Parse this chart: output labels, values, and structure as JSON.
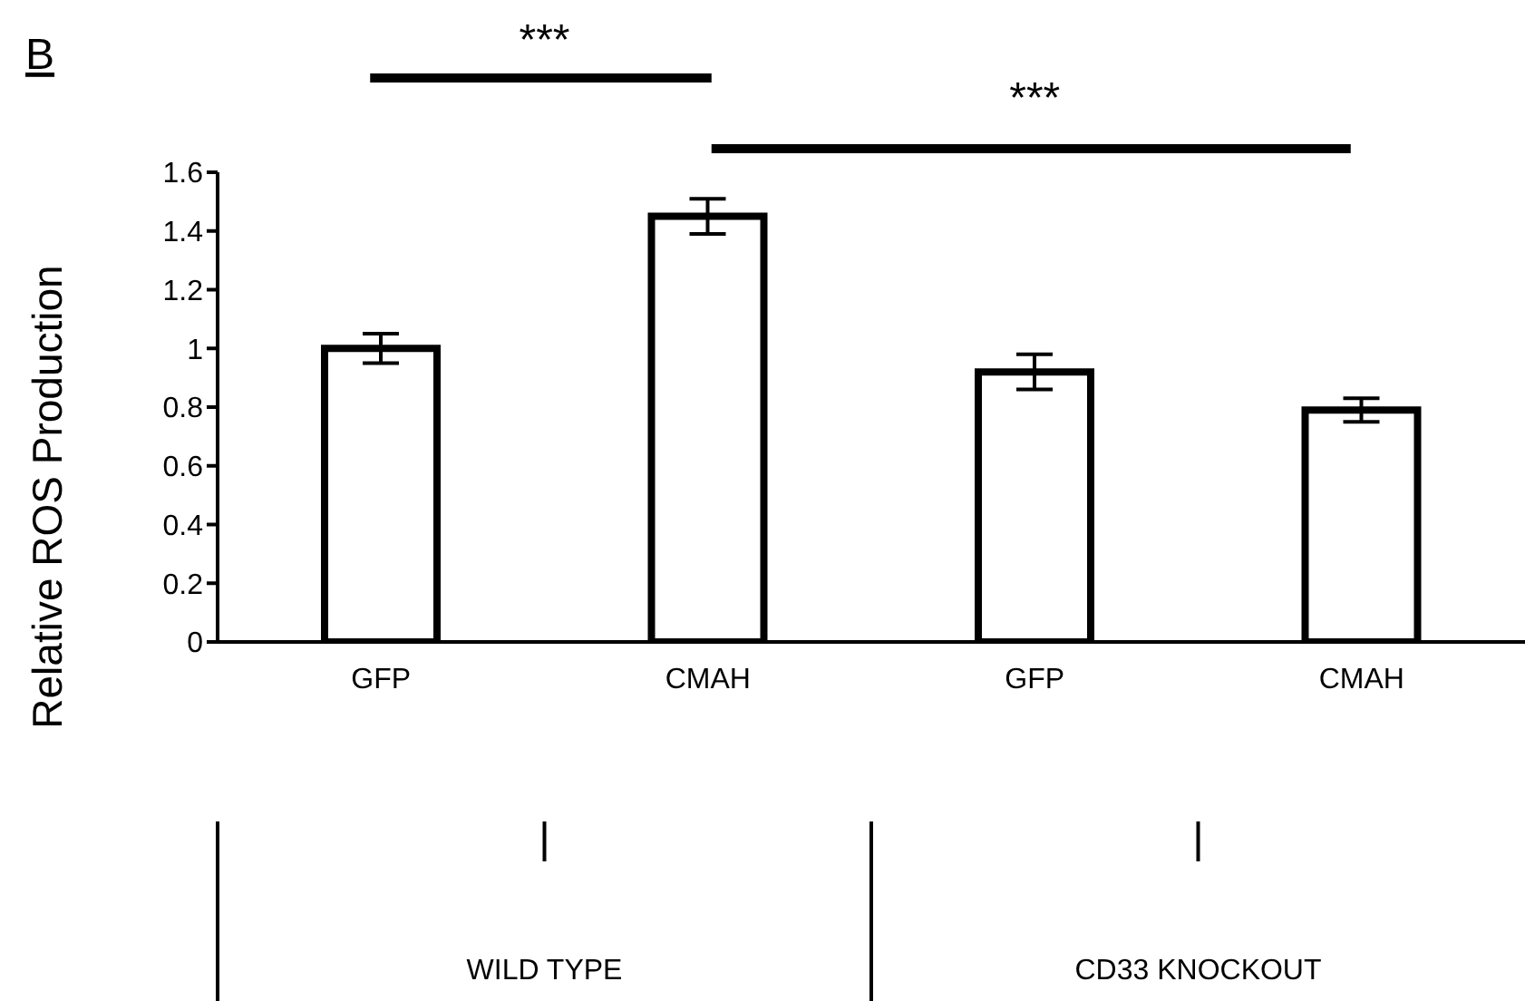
{
  "chart_data": {
    "type": "bar",
    "title": "B",
    "ylabel": "Relative ROS Production",
    "categories": [
      "GFP",
      "CMAH",
      "GFP",
      "CMAH"
    ],
    "values": [
      1.0,
      1.45,
      0.92,
      0.79
    ],
    "errors": [
      0.05,
      0.06,
      0.06,
      0.04
    ],
    "color": "#ffffff",
    "ylim": [
      0,
      1.6
    ],
    "yticks": [
      0,
      0.2,
      0.4,
      0.6,
      0.8,
      1,
      1.2,
      1.4,
      1.6
    ],
    "annotations": [
      "***",
      "***",
      "WILD TYPE",
      "CD33 KNOCKOUT"
    ]
  }
}
